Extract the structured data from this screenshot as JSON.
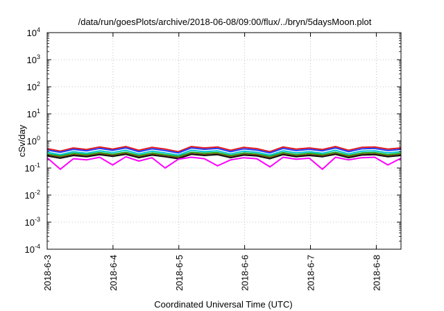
{
  "chart_data": {
    "type": "line",
    "title": "/data/run/goesPlots/archive/2018-06-08/09:00/flux/../bryn/5daysMoon.plot",
    "xlabel": "Coordinated Universal Time (UTC)",
    "ylabel": "cSv/day",
    "y_scale": "log",
    "ylim": [
      0.0001,
      10000
    ],
    "y_ticks": [
      {
        "value": 0.0001,
        "base": "10",
        "exp": "-4"
      },
      {
        "value": 0.001,
        "base": "10",
        "exp": "-3"
      },
      {
        "value": 0.01,
        "base": "10",
        "exp": "-2"
      },
      {
        "value": 0.1,
        "base": "10",
        "exp": "-1"
      },
      {
        "value": 1,
        "base": "10",
        "exp": "0"
      },
      {
        "value": 10,
        "base": "10",
        "exp": "1"
      },
      {
        "value": 100,
        "base": "10",
        "exp": "2"
      },
      {
        "value": 1000,
        "base": "10",
        "exp": "3"
      },
      {
        "value": 10000,
        "base": "10",
        "exp": "4"
      }
    ],
    "xlim": [
      "2018-06-03 00:00",
      "2018-06-08 09:00"
    ],
    "x_ticks": [
      "2018-6-3",
      "2018-6-4",
      "2018-6-5",
      "2018-6-6",
      "2018-6-7",
      "2018-6-8"
    ],
    "grid": true,
    "series": [
      {
        "color": "#e41a1c",
        "values": [
          0.52,
          0.42,
          0.55,
          0.48,
          0.6,
          0.5,
          0.62,
          0.45,
          0.58,
          0.5,
          0.4,
          0.62,
          0.55,
          0.6,
          0.45,
          0.58,
          0.52,
          0.4,
          0.6,
          0.5,
          0.55,
          0.48,
          0.62,
          0.45,
          0.58,
          0.6,
          0.5,
          0.55
        ]
      },
      {
        "color": "#1f3cff",
        "values": [
          0.46,
          0.38,
          0.49,
          0.43,
          0.53,
          0.45,
          0.55,
          0.4,
          0.51,
          0.44,
          0.36,
          0.55,
          0.49,
          0.53,
          0.4,
          0.51,
          0.46,
          0.36,
          0.53,
          0.44,
          0.49,
          0.43,
          0.55,
          0.4,
          0.51,
          0.53,
          0.44,
          0.49
        ]
      },
      {
        "color": "#00c8d2",
        "values": [
          0.38,
          0.31,
          0.4,
          0.35,
          0.43,
          0.37,
          0.45,
          0.33,
          0.42,
          0.36,
          0.3,
          0.45,
          0.4,
          0.43,
          0.33,
          0.42,
          0.38,
          0.3,
          0.43,
          0.36,
          0.4,
          0.35,
          0.45,
          0.33,
          0.42,
          0.43,
          0.36,
          0.4
        ]
      },
      {
        "color": "#22aa22",
        "values": [
          0.33,
          0.28,
          0.35,
          0.31,
          0.37,
          0.32,
          0.38,
          0.29,
          0.36,
          0.31,
          0.27,
          0.38,
          0.35,
          0.37,
          0.29,
          0.36,
          0.33,
          0.27,
          0.37,
          0.31,
          0.35,
          0.31,
          0.38,
          0.29,
          0.36,
          0.37,
          0.31,
          0.35
        ]
      },
      {
        "color": "#8b4513",
        "values": [
          0.3,
          0.25,
          0.31,
          0.28,
          0.33,
          0.29,
          0.34,
          0.26,
          0.32,
          0.28,
          0.24,
          0.34,
          0.31,
          0.33,
          0.26,
          0.32,
          0.3,
          0.24,
          0.33,
          0.28,
          0.31,
          0.28,
          0.34,
          0.26,
          0.32,
          0.33,
          0.28,
          0.31
        ]
      },
      {
        "color": "#111111",
        "values": [
          0.28,
          0.23,
          0.29,
          0.26,
          0.31,
          0.27,
          0.32,
          0.24,
          0.3,
          0.26,
          0.22,
          0.32,
          0.29,
          0.31,
          0.24,
          0.3,
          0.28,
          0.22,
          0.31,
          0.26,
          0.29,
          0.26,
          0.32,
          0.24,
          0.3,
          0.31,
          0.26,
          0.29
        ]
      },
      {
        "color": "#ff00ff",
        "values": [
          0.24,
          0.09,
          0.22,
          0.2,
          0.25,
          0.13,
          0.26,
          0.18,
          0.24,
          0.1,
          0.21,
          0.25,
          0.22,
          0.12,
          0.2,
          0.24,
          0.22,
          0.11,
          0.25,
          0.21,
          0.23,
          0.09,
          0.25,
          0.2,
          0.24,
          0.25,
          0.13,
          0.23
        ]
      }
    ]
  }
}
